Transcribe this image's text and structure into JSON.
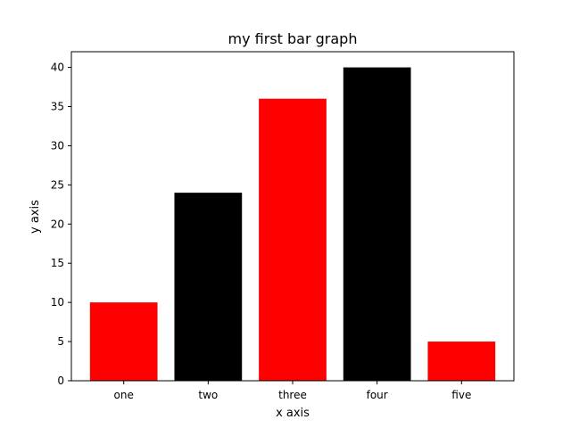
{
  "chart_data": {
    "type": "bar",
    "title": "my first bar graph",
    "xlabel": "x axis",
    "ylabel": "y axis",
    "categories": [
      "one",
      "two",
      "three",
      "four",
      "five"
    ],
    "values": [
      10,
      24,
      36,
      40,
      5
    ],
    "bar_colors": [
      "#ff0000",
      "#000000",
      "#ff0000",
      "#000000",
      "#ff0000"
    ],
    "ylim": [
      0,
      42
    ],
    "yticks": [
      0,
      5,
      10,
      15,
      20,
      25,
      30,
      35,
      40
    ],
    "grid": false,
    "legend": "none"
  }
}
